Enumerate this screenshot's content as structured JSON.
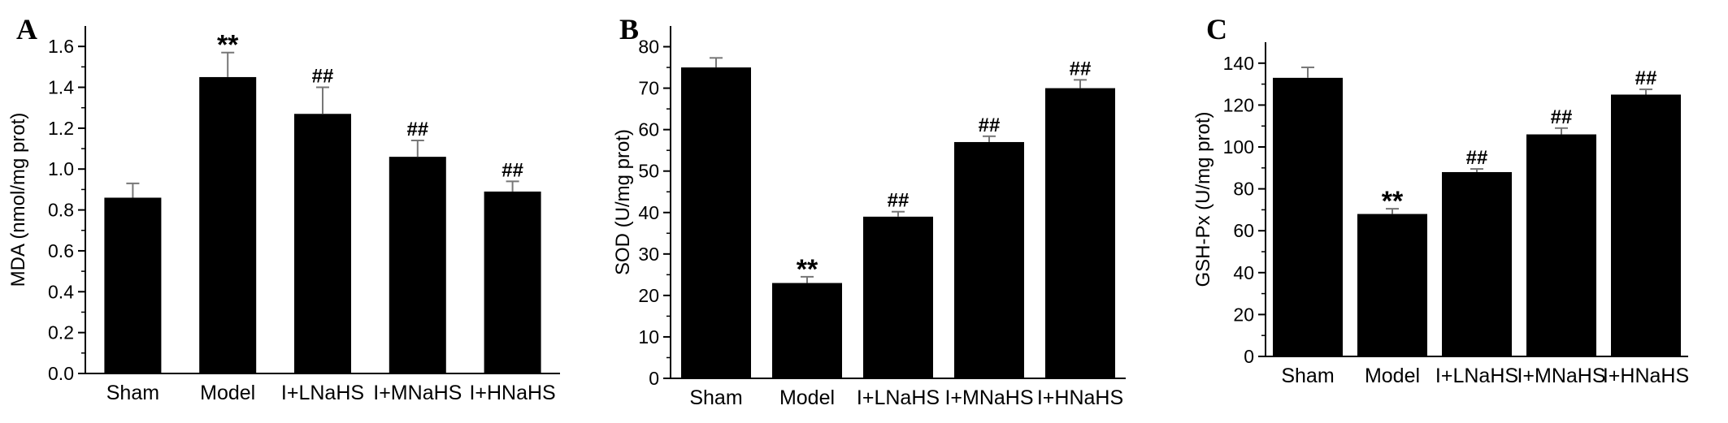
{
  "chart_data": [
    {
      "type": "bar",
      "panel_label": "A",
      "categories": [
        "Sham",
        "Model",
        "I+LNaHS",
        "I+MNaHS",
        "I+HNaHS"
      ],
      "values": [
        0.86,
        1.45,
        1.27,
        1.06,
        0.89
      ],
      "errors": [
        0.07,
        0.12,
        0.13,
        0.08,
        0.05
      ],
      "annotations": [
        "",
        "**",
        "##",
        "##",
        "##"
      ],
      "ylabel": "MDA (nmol/mg prot)",
      "ylim": [
        0,
        1.7
      ],
      "yticks": [
        0.0,
        0.2,
        0.4,
        0.6,
        0.8,
        1.0,
        1.2,
        1.4,
        1.6
      ],
      "ytick_labels": [
        "0.0",
        "0.2",
        "0.4",
        "0.6",
        "0.8",
        "1.0",
        "1.2",
        "1.4",
        "1.6"
      ],
      "bar_color": "#000000"
    },
    {
      "type": "bar",
      "panel_label": "B",
      "categories": [
        "Sham",
        "Model",
        "I+LNaHS",
        "I+MNaHS",
        "I+HNaHS"
      ],
      "values": [
        75,
        23,
        39,
        57,
        70
      ],
      "errors": [
        2.3,
        1.5,
        1.2,
        1.4,
        2.0
      ],
      "annotations": [
        "",
        "**",
        "##",
        "##",
        "##"
      ],
      "ylabel": "SOD (U/mg prot)",
      "ylim": [
        0,
        85
      ],
      "yticks": [
        0,
        10,
        20,
        30,
        40,
        50,
        60,
        70,
        80
      ],
      "ytick_labels": [
        "0",
        "10",
        "20",
        "30",
        "40",
        "50",
        "60",
        "70",
        "80"
      ],
      "bar_color": "#000000"
    },
    {
      "type": "bar",
      "panel_label": "C",
      "categories": [
        "Sham",
        "Model",
        "I+LNaHS",
        "I+MNaHS",
        "I+HNaHS"
      ],
      "values": [
        133,
        68,
        88,
        106,
        125
      ],
      "errors": [
        5,
        2.5,
        1.5,
        3,
        2.5
      ],
      "annotations": [
        "",
        "**",
        "##",
        "##",
        "##"
      ],
      "ylabel": "GSH-Px (U/mg prot)",
      "ylim": [
        0,
        150
      ],
      "yticks": [
        0,
        20,
        40,
        60,
        80,
        100,
        120,
        140
      ],
      "ytick_labels": [
        "0",
        "20",
        "40",
        "60",
        "80",
        "100",
        "120",
        "140"
      ],
      "bar_color": "#000000"
    }
  ]
}
